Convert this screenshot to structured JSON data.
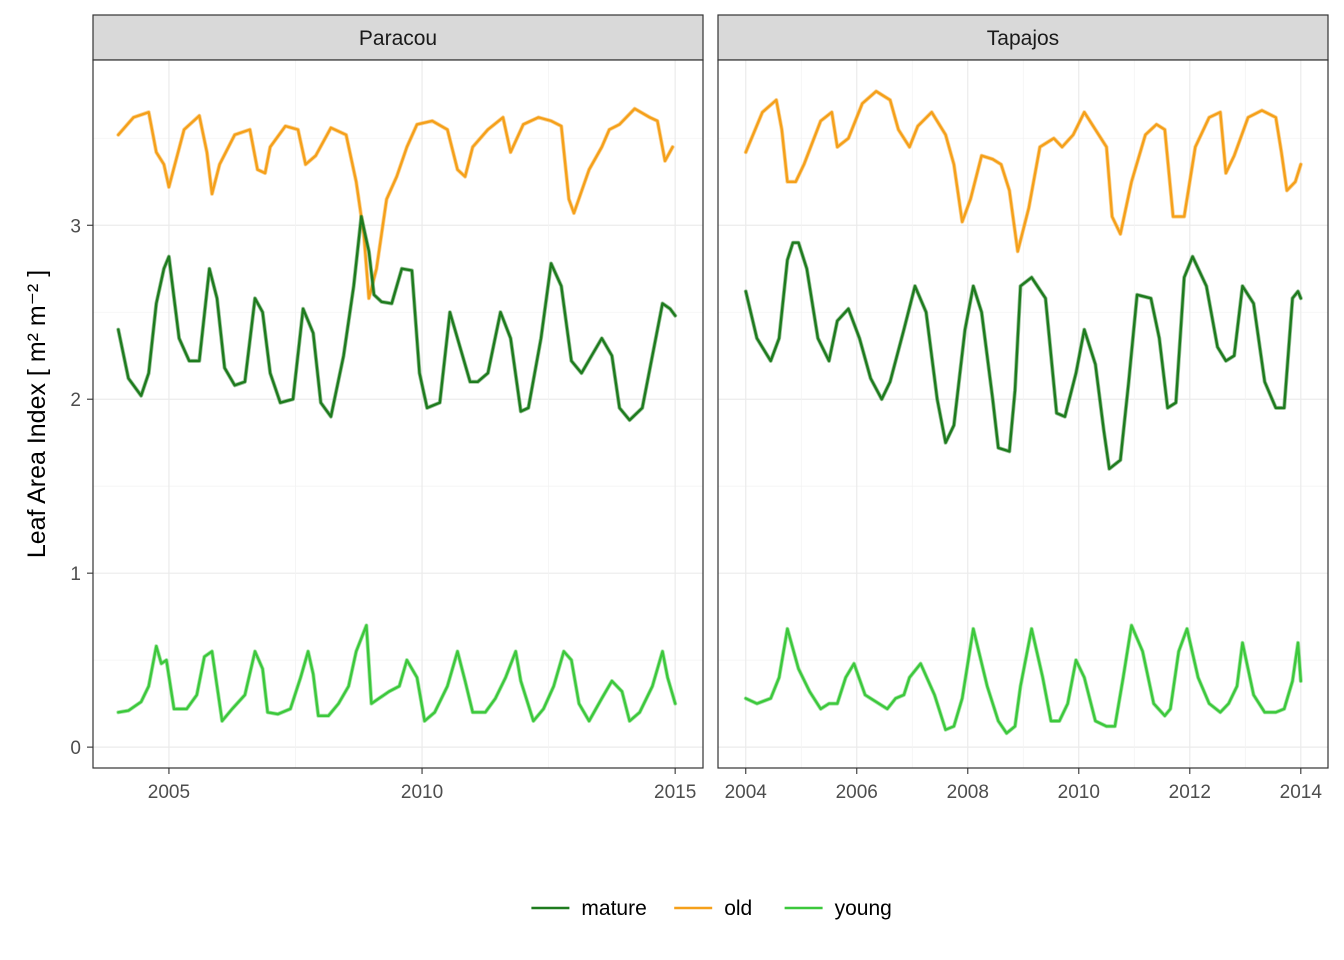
{
  "chart_data": {
    "type": "line",
    "ylabel": "Leaf Area Index [ m² m⁻² ]",
    "ylim": [
      -0.12,
      3.95
    ],
    "y_ticks": [
      0,
      1,
      2,
      3
    ],
    "legend": {
      "position": "bottom",
      "entries": [
        {
          "name": "mature",
          "color": "#1e7b1e"
        },
        {
          "name": "old",
          "color": "#f5a01a"
        },
        {
          "name": "young",
          "color": "#3cc83c"
        }
      ]
    },
    "panels": [
      {
        "strip": "Paracou",
        "x_range": [
          2003.5,
          2015.55
        ],
        "x_ticks": [
          "2005",
          "2010",
          "2015"
        ],
        "series": [
          {
            "name": "old",
            "color": "#f5a01a",
            "x": [
              2004.0,
              2004.3,
              2004.6,
              2004.75,
              2004.9,
              2005.0,
              2005.3,
              2005.6,
              2005.75,
              2005.85,
              2006.0,
              2006.3,
              2006.6,
              2006.75,
              2006.9,
              2007.0,
              2007.3,
              2007.55,
              2007.7,
              2007.9,
              2008.2,
              2008.5,
              2008.7,
              2008.85,
              2008.95,
              2009.1,
              2009.3,
              2009.5,
              2009.7,
              2009.9,
              2010.2,
              2010.5,
              2010.7,
              2010.85,
              2011.0,
              2011.3,
              2011.6,
              2011.75,
              2012.0,
              2012.3,
              2012.55,
              2012.75,
              2012.9,
              2013.0,
              2013.3,
              2013.55,
              2013.7,
              2013.9,
              2014.2,
              2014.5,
              2014.65,
              2014.8,
              2014.95
            ],
            "values": [
              3.52,
              3.62,
              3.65,
              3.42,
              3.35,
              3.22,
              3.55,
              3.63,
              3.42,
              3.18,
              3.35,
              3.52,
              3.55,
              3.32,
              3.3,
              3.45,
              3.57,
              3.55,
              3.35,
              3.4,
              3.56,
              3.52,
              3.25,
              2.95,
              2.58,
              2.75,
              3.15,
              3.28,
              3.45,
              3.58,
              3.6,
              3.55,
              3.32,
              3.28,
              3.45,
              3.55,
              3.62,
              3.42,
              3.58,
              3.62,
              3.6,
              3.57,
              3.15,
              3.07,
              3.32,
              3.45,
              3.55,
              3.58,
              3.67,
              3.62,
              3.6,
              3.37,
              3.45
            ]
          },
          {
            "name": "mature",
            "color": "#1e7b1e",
            "x": [
              2004.0,
              2004.2,
              2004.45,
              2004.6,
              2004.75,
              2004.9,
              2005.0,
              2005.2,
              2005.4,
              2005.6,
              2005.8,
              2005.95,
              2006.1,
              2006.3,
              2006.5,
              2006.7,
              2006.85,
              2007.0,
              2007.2,
              2007.45,
              2007.65,
              2007.85,
              2008.0,
              2008.2,
              2008.45,
              2008.65,
              2008.8,
              2008.95,
              2009.05,
              2009.2,
              2009.4,
              2009.6,
              2009.8,
              2009.95,
              2010.1,
              2010.35,
              2010.55,
              2010.75,
              2010.95,
              2011.1,
              2011.3,
              2011.55,
              2011.75,
              2011.95,
              2012.1,
              2012.35,
              2012.55,
              2012.75,
              2012.95,
              2013.15,
              2013.35,
              2013.55,
              2013.75,
              2013.9,
              2014.1,
              2014.35,
              2014.55,
              2014.75,
              2014.9,
              2015.0
            ],
            "values": [
              2.4,
              2.12,
              2.02,
              2.15,
              2.55,
              2.75,
              2.82,
              2.35,
              2.22,
              2.22,
              2.75,
              2.58,
              2.18,
              2.08,
              2.1,
              2.58,
              2.5,
              2.15,
              1.98,
              2.0,
              2.52,
              2.38,
              1.98,
              1.9,
              2.25,
              2.65,
              3.05,
              2.85,
              2.6,
              2.56,
              2.55,
              2.75,
              2.74,
              2.15,
              1.95,
              1.98,
              2.5,
              2.3,
              2.1,
              2.1,
              2.15,
              2.5,
              2.35,
              1.93,
              1.95,
              2.35,
              2.78,
              2.65,
              2.22,
              2.15,
              2.25,
              2.35,
              2.25,
              1.95,
              1.88,
              1.95,
              2.25,
              2.55,
              2.52,
              2.48
            ]
          },
          {
            "name": "young",
            "color": "#3cc83c",
            "x": [
              2004.0,
              2004.2,
              2004.45,
              2004.6,
              2004.75,
              2004.85,
              2004.95,
              2005.1,
              2005.35,
              2005.55,
              2005.7,
              2005.85,
              2006.05,
              2006.25,
              2006.5,
              2006.7,
              2006.85,
              2006.95,
              2007.15,
              2007.4,
              2007.6,
              2007.75,
              2007.85,
              2007.95,
              2008.15,
              2008.35,
              2008.55,
              2008.7,
              2008.9,
              2009.0,
              2009.15,
              2009.35,
              2009.55,
              2009.7,
              2009.9,
              2010.05,
              2010.25,
              2010.5,
              2010.7,
              2010.85,
              2011.0,
              2011.25,
              2011.45,
              2011.65,
              2011.85,
              2011.95,
              2012.2,
              2012.4,
              2012.6,
              2012.8,
              2012.95,
              2013.1,
              2013.3,
              2013.55,
              2013.75,
              2013.95,
              2014.1,
              2014.3,
              2014.55,
              2014.75,
              2014.85,
              2015.0
            ],
            "values": [
              0.2,
              0.21,
              0.26,
              0.35,
              0.58,
              0.48,
              0.5,
              0.22,
              0.22,
              0.3,
              0.52,
              0.55,
              0.15,
              0.22,
              0.3,
              0.55,
              0.45,
              0.2,
              0.19,
              0.22,
              0.4,
              0.55,
              0.42,
              0.18,
              0.18,
              0.25,
              0.35,
              0.55,
              0.7,
              0.25,
              0.28,
              0.32,
              0.35,
              0.5,
              0.4,
              0.15,
              0.2,
              0.35,
              0.55,
              0.38,
              0.2,
              0.2,
              0.28,
              0.4,
              0.55,
              0.38,
              0.15,
              0.22,
              0.35,
              0.55,
              0.5,
              0.25,
              0.15,
              0.28,
              0.38,
              0.32,
              0.15,
              0.2,
              0.35,
              0.55,
              0.4,
              0.25
            ]
          }
        ]
      },
      {
        "strip": "Tapajos",
        "x_range": [
          2003.5,
          2014.49
        ],
        "x_ticks": [
          "2004",
          "2006",
          "2008",
          "2010",
          "2012",
          "2014"
        ],
        "series": [
          {
            "name": "old",
            "color": "#f5a01a",
            "x": [
              2004.0,
              2004.3,
              2004.55,
              2004.65,
              2004.75,
              2004.9,
              2005.05,
              2005.35,
              2005.55,
              2005.65,
              2005.85,
              2006.1,
              2006.35,
              2006.6,
              2006.75,
              2006.95,
              2007.1,
              2007.35,
              2007.6,
              2007.75,
              2007.9,
              2008.05,
              2008.25,
              2008.45,
              2008.6,
              2008.75,
              2008.9,
              2009.1,
              2009.3,
              2009.55,
              2009.7,
              2009.9,
              2010.1,
              2010.3,
              2010.5,
              2010.6,
              2010.75,
              2010.95,
              2011.2,
              2011.4,
              2011.55,
              2011.7,
              2011.9,
              2012.1,
              2012.35,
              2012.55,
              2012.65,
              2012.8,
              2013.05,
              2013.3,
              2013.55,
              2013.65,
              2013.75,
              2013.9,
              2014.0
            ],
            "values": [
              3.42,
              3.65,
              3.72,
              3.55,
              3.25,
              3.25,
              3.35,
              3.6,
              3.65,
              3.45,
              3.5,
              3.7,
              3.77,
              3.72,
              3.55,
              3.45,
              3.57,
              3.65,
              3.52,
              3.35,
              3.02,
              3.15,
              3.4,
              3.38,
              3.35,
              3.2,
              2.85,
              3.1,
              3.45,
              3.5,
              3.45,
              3.52,
              3.65,
              3.55,
              3.45,
              3.05,
              2.95,
              3.25,
              3.52,
              3.58,
              3.55,
              3.05,
              3.05,
              3.45,
              3.62,
              3.65,
              3.3,
              3.4,
              3.62,
              3.66,
              3.62,
              3.42,
              3.2,
              3.25,
              3.35
            ]
          },
          {
            "name": "mature",
            "color": "#1e7b1e",
            "x": [
              2004.0,
              2004.2,
              2004.45,
              2004.6,
              2004.75,
              2004.85,
              2004.95,
              2005.1,
              2005.3,
              2005.5,
              2005.65,
              2005.85,
              2006.05,
              2006.25,
              2006.45,
              2006.6,
              2006.85,
              2007.05,
              2007.25,
              2007.45,
              2007.6,
              2007.75,
              2007.95,
              2008.1,
              2008.25,
              2008.45,
              2008.55,
              2008.75,
              2008.85,
              2008.95,
              2009.15,
              2009.4,
              2009.6,
              2009.75,
              2009.95,
              2010.1,
              2010.3,
              2010.45,
              2010.55,
              2010.75,
              2010.9,
              2011.05,
              2011.3,
              2011.45,
              2011.6,
              2011.75,
              2011.9,
              2012.05,
              2012.3,
              2012.5,
              2012.65,
              2012.8,
              2012.95,
              2013.15,
              2013.35,
              2013.55,
              2013.7,
              2013.85,
              2013.95,
              2014.0
            ],
            "values": [
              2.62,
              2.35,
              2.22,
              2.35,
              2.8,
              2.9,
              2.9,
              2.75,
              2.35,
              2.22,
              2.45,
              2.52,
              2.35,
              2.12,
              2.0,
              2.1,
              2.4,
              2.65,
              2.5,
              2.0,
              1.75,
              1.85,
              2.4,
              2.65,
              2.5,
              2.0,
              1.72,
              1.7,
              2.05,
              2.65,
              2.7,
              2.58,
              1.92,
              1.9,
              2.15,
              2.4,
              2.2,
              1.82,
              1.6,
              1.65,
              2.1,
              2.6,
              2.58,
              2.35,
              1.95,
              1.98,
              2.7,
              2.82,
              2.65,
              2.3,
              2.22,
              2.25,
              2.65,
              2.55,
              2.1,
              1.95,
              1.95,
              2.58,
              2.62,
              2.58
            ]
          },
          {
            "name": "young",
            "color": "#3cc83c",
            "x": [
              2004.0,
              2004.2,
              2004.45,
              2004.6,
              2004.75,
              2004.95,
              2005.15,
              2005.35,
              2005.5,
              2005.65,
              2005.8,
              2005.95,
              2006.15,
              2006.35,
              2006.55,
              2006.7,
              2006.85,
              2006.95,
              2007.15,
              2007.4,
              2007.6,
              2007.75,
              2007.9,
              2008.1,
              2008.35,
              2008.55,
              2008.7,
              2008.85,
              2008.95,
              2009.15,
              2009.35,
              2009.5,
              2009.65,
              2009.8,
              2009.95,
              2010.1,
              2010.3,
              2010.5,
              2010.65,
              2010.8,
              2010.95,
              2011.15,
              2011.35,
              2011.55,
              2011.65,
              2011.8,
              2011.95,
              2012.15,
              2012.35,
              2012.55,
              2012.7,
              2012.85,
              2012.95,
              2013.15,
              2013.35,
              2013.55,
              2013.7,
              2013.85,
              2013.95,
              2014.0
            ],
            "values": [
              0.28,
              0.25,
              0.28,
              0.4,
              0.68,
              0.45,
              0.32,
              0.22,
              0.25,
              0.25,
              0.4,
              0.48,
              0.3,
              0.26,
              0.22,
              0.28,
              0.3,
              0.4,
              0.48,
              0.3,
              0.1,
              0.12,
              0.28,
              0.68,
              0.35,
              0.15,
              0.08,
              0.12,
              0.35,
              0.68,
              0.4,
              0.15,
              0.15,
              0.25,
              0.5,
              0.4,
              0.15,
              0.12,
              0.12,
              0.4,
              0.7,
              0.55,
              0.25,
              0.18,
              0.22,
              0.55,
              0.68,
              0.4,
              0.25,
              0.2,
              0.25,
              0.35,
              0.6,
              0.3,
              0.2,
              0.2,
              0.22,
              0.38,
              0.6,
              0.38
            ]
          }
        ]
      }
    ]
  }
}
